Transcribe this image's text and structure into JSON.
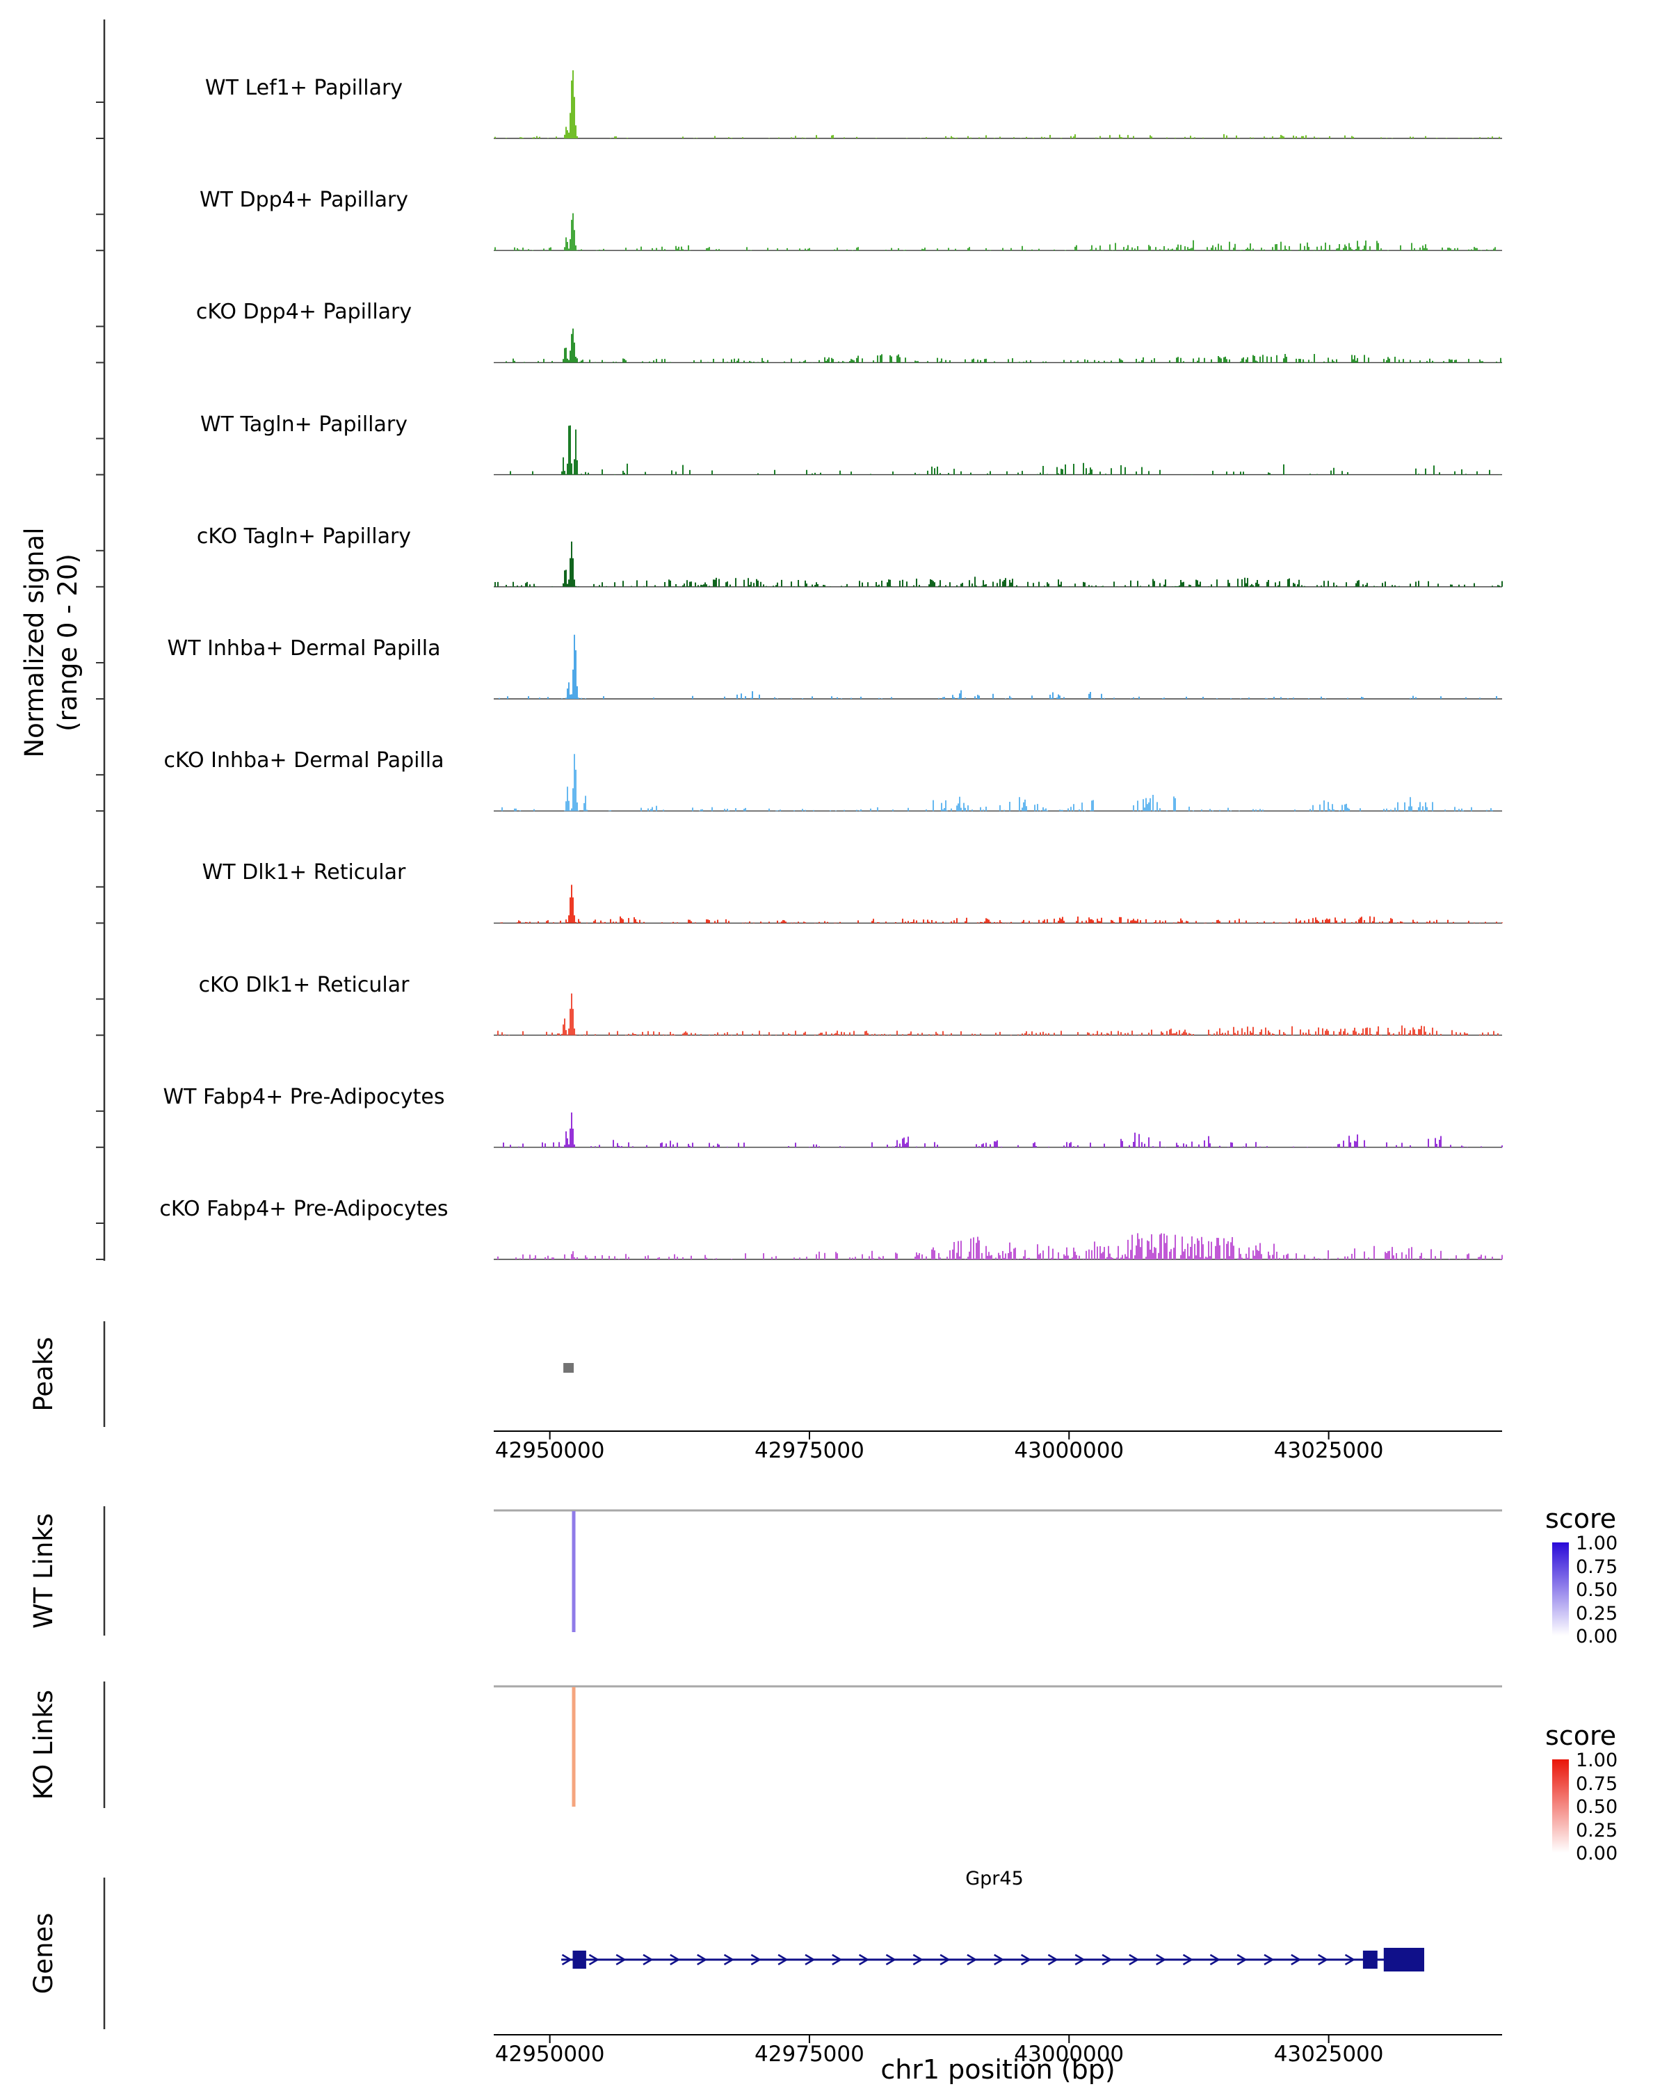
{
  "chart_data": {
    "type": "area",
    "subtype": "genome-browser-coverage-tracks",
    "region": {
      "chrom": "chr1",
      "start": 42944600,
      "end": 43041700
    },
    "x_axis": {
      "title": "chr1 position (bp)",
      "ticks": [
        42950000,
        42975000,
        43000000,
        43025000
      ]
    },
    "y_axis": {
      "label_line1": "Normalized signal",
      "label_line2": "(range 0 - 20)",
      "min": 0,
      "max": 20
    },
    "signal_tracks": [
      {
        "label": "WT Lef1+ Papillary",
        "color": "#72BE2A",
        "seed": 101,
        "peaks": [
          [
            42952200,
            20,
            330
          ],
          [
            42951600,
            3.5,
            220
          ]
        ],
        "noise": [
          0.15,
          0.7
        ],
        "clusters": [
          [
            42975000,
            3000,
            0.1,
            0.5
          ],
          [
            43008000,
            15000,
            0.12,
            0.7
          ]
        ]
      },
      {
        "label": "WT Dpp4+ Papillary",
        "color": "#45A83C",
        "seed": 202,
        "peaks": [
          [
            42952200,
            11,
            300
          ],
          [
            42951600,
            4,
            200
          ]
        ],
        "noise": [
          0.2,
          1.0
        ],
        "clusters": [
          [
            42961500,
            2000,
            0.2,
            1.2
          ],
          [
            42998000,
            5000,
            0.12,
            1.0
          ],
          [
            43014000,
            12000,
            0.3,
            2.0
          ],
          [
            43030000,
            6000,
            0.2,
            1.5
          ]
        ]
      },
      {
        "label": "cKO Dpp4+ Papillary",
        "color": "#2E9330",
        "seed": 303,
        "peaks": [
          [
            42952200,
            10,
            320
          ],
          [
            42951500,
            5,
            230
          ]
        ],
        "noise": [
          0.3,
          1.3
        ],
        "clusters": [
          [
            42981500,
            4000,
            0.25,
            1.4
          ],
          [
            43022000,
            12000,
            0.18,
            1.2
          ]
        ]
      },
      {
        "label": "WT Tagln+ Papillary",
        "color": "#1B7C27",
        "seed": 404,
        "peaks": [
          [
            42951900,
            17,
            220
          ],
          [
            42952500,
            13,
            180
          ],
          [
            42951300,
            5,
            150
          ]
        ],
        "noise": [
          0.12,
          1.4
        ],
        "clusters": [
          [
            42957500,
            2000,
            0.25,
            2.2
          ],
          [
            42962500,
            1500,
            0.2,
            1.8
          ],
          [
            42985500,
            2500,
            0.15,
            2.0
          ],
          [
            43000500,
            7000,
            0.18,
            2.0
          ],
          [
            43023500,
            5000,
            0.15,
            2.2
          ],
          [
            43035000,
            2000,
            0.15,
            1.8
          ]
        ]
      },
      {
        "label": "cKO Tagln+ Papillary",
        "color": "#11651E",
        "seed": 505,
        "peaks": [
          [
            42952100,
            13,
            280
          ],
          [
            42951500,
            6,
            200
          ]
        ],
        "noise": [
          0.35,
          1.7
        ],
        "clusters": [
          [
            42966000,
            7000,
            0.12,
            1.0
          ],
          [
            42991000,
            9000,
            0.15,
            1.2
          ],
          [
            43016000,
            11000,
            0.12,
            1.0
          ]
        ]
      },
      {
        "label": "WT Inhba+ Dermal Papilla",
        "color": "#4FA8E8",
        "seed": 606,
        "peaks": [
          [
            42952400,
            19,
            260
          ],
          [
            42951800,
            5,
            200
          ]
        ],
        "noise": [
          0.13,
          0.9
        ],
        "clusters": [
          [
            42968500,
            1200,
            0.35,
            3.2
          ],
          [
            42990500,
            1500,
            0.35,
            3.6
          ],
          [
            42997500,
            3500,
            0.12,
            1.4
          ],
          [
            43003000,
            2000,
            0.15,
            1.2
          ]
        ]
      },
      {
        "label": "cKO Inhba+ Dermal Papilla",
        "color": "#66B8F0",
        "seed": 707,
        "peaks": [
          [
            42952400,
            17,
            240
          ],
          [
            42951700,
            7,
            200
          ],
          [
            42953400,
            5,
            150
          ]
        ],
        "noise": [
          0.17,
          1.1
        ],
        "clusters": [
          [
            42960500,
            1200,
            0.3,
            2.8
          ],
          [
            42988500,
            2000,
            0.3,
            3.8
          ],
          [
            42995500,
            1800,
            0.3,
            3.8
          ],
          [
            43002500,
            1800,
            0.3,
            4.6
          ],
          [
            43008500,
            2200,
            0.3,
            5.4
          ],
          [
            43025500,
            1800,
            0.22,
            2.8
          ],
          [
            43033000,
            2200,
            0.25,
            3.6
          ]
        ]
      },
      {
        "label": "WT Dlk1+ Reticular",
        "color": "#EE3A24",
        "seed": 808,
        "peaks": [
          [
            42952100,
            11,
            300
          ]
        ],
        "noise": [
          0.33,
          1.1
        ],
        "clusters": [
          [
            42956500,
            2500,
            0.2,
            1.0
          ],
          [
            43000000,
            14000,
            0.15,
            0.8
          ],
          [
            43027500,
            4500,
            0.2,
            1.0
          ]
        ]
      },
      {
        "label": "cKO Dlk1+ Reticular",
        "color": "#F0503C",
        "seed": 909,
        "peaks": [
          [
            42952100,
            12,
            280
          ],
          [
            42951400,
            5,
            210
          ]
        ],
        "noise": [
          0.4,
          1.3
        ],
        "clusters": [
          [
            43019000,
            11000,
            0.2,
            1.4
          ],
          [
            43032500,
            4500,
            0.22,
            1.5
          ]
        ]
      },
      {
        "label": "WT Fabp4+ Pre-Adipocytes",
        "color": "#9632D8",
        "seed": 1010,
        "peaks": [
          [
            42952100,
            10,
            240
          ],
          [
            42951600,
            5,
            170
          ]
        ],
        "noise": [
          0.18,
          1.5
        ],
        "clusters": [
          [
            42957500,
            1300,
            0.3,
            2.4
          ],
          [
            42961500,
            1300,
            0.22,
            2.0
          ],
          [
            42984500,
            1800,
            0.22,
            2.0
          ],
          [
            42992500,
            1800,
            0.25,
            2.4
          ],
          [
            42999500,
            1800,
            0.25,
            2.4
          ],
          [
            43006500,
            2200,
            0.25,
            2.8
          ],
          [
            43013500,
            1800,
            0.22,
            2.4
          ],
          [
            43027500,
            1300,
            0.3,
            2.8
          ],
          [
            43035500,
            1800,
            0.22,
            2.0
          ]
        ]
      },
      {
        "label": "cKO Fabp4+ Pre-Adipocytes",
        "color": "#C159D6",
        "seed": 1111,
        "peaks": [
          [
            42952200,
            2.5,
            200
          ]
        ],
        "noise": [
          0.28,
          1.8
        ],
        "clusters": [
          [
            42990500,
            2500,
            0.3,
            2.8
          ],
          [
            43001000,
            18000,
            0.35,
            3.2
          ],
          [
            43008500,
            3500,
            0.3,
            3.8
          ],
          [
            43016000,
            4500,
            0.3,
            3.2
          ],
          [
            43030500,
            5500,
            0.25,
            2.4
          ]
        ]
      }
    ],
    "peaks_panel": {
      "label": "Peaks",
      "color": "#737373",
      "peaks": [
        [
          42951300,
          42952300
        ]
      ]
    },
    "wt_links_panel": {
      "label": "WT Links",
      "baseline_color": "#A8A8A8",
      "links": [
        {
          "pos": 42952300,
          "color": "#8F7BE8"
        }
      ],
      "legend": {
        "title": "score",
        "tick_labels": [
          "1.00",
          "0.75",
          "0.50",
          "0.25",
          "0.00"
        ],
        "color_high": "#2A0AD8",
        "color_low": "#FFFFFF"
      }
    },
    "ko_links_panel": {
      "label": "KO Links",
      "baseline_color": "#A8A8A8",
      "links": [
        {
          "pos": 42952300,
          "color": "#F5A57E"
        }
      ],
      "legend": {
        "title": "score",
        "tick_labels": [
          "1.00",
          "0.75",
          "0.50",
          "0.25",
          "0.00"
        ],
        "color_high": "#E91509",
        "color_low": "#FFFFFF"
      }
    },
    "genes_panel": {
      "label": "Genes",
      "gene": {
        "name": "Gpr45",
        "color": "#10108A",
        "strand": "+",
        "start": 42951100,
        "end": 43034200,
        "exons": [
          [
            42952200,
            42953500,
            26
          ],
          [
            43028300,
            43029700,
            26
          ],
          [
            43030300,
            43034200,
            34
          ]
        ]
      }
    }
  }
}
